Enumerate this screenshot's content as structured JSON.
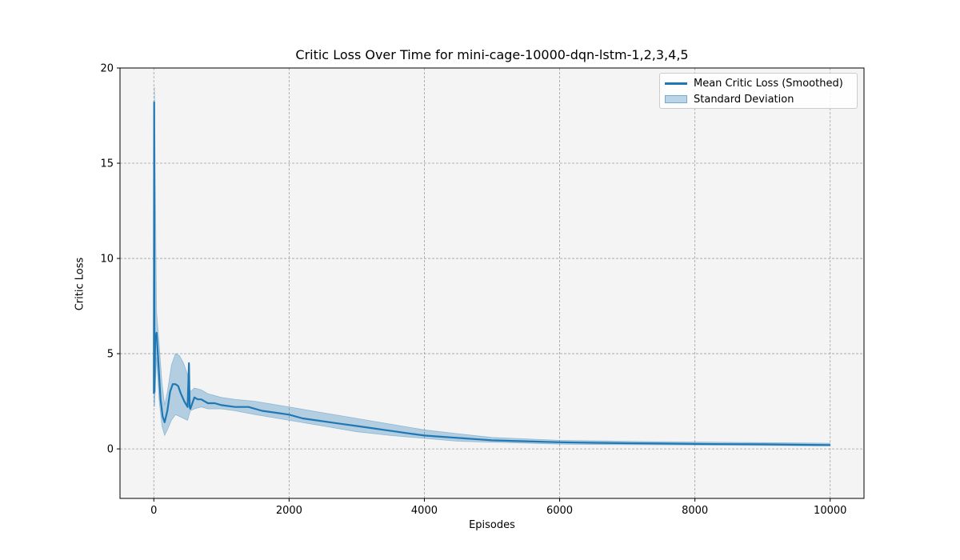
{
  "chart_data": {
    "type": "line",
    "title": "Critic Loss Over Time for mini-cage-10000-dqn-lstm-1,2,3,4,5",
    "xlabel": "Episodes",
    "ylabel": "Critic Loss",
    "xlim": [
      -500,
      10500
    ],
    "ylim": [
      -2.6,
      20
    ],
    "xticks": [
      0,
      2000,
      4000,
      6000,
      8000,
      10000
    ],
    "xtick_labels": [
      "0",
      "2000",
      "4000",
      "6000",
      "8000",
      "10000"
    ],
    "yticks": [
      0,
      5,
      10,
      15,
      20
    ],
    "ytick_labels": [
      "0",
      "5",
      "10",
      "15",
      "20"
    ],
    "grid": true,
    "legend_position": "top-right",
    "colors": {
      "line": "#1f77b4",
      "band": "#1f77b4",
      "plot_bg": "#f4f4f4"
    },
    "series": [
      {
        "name": "Mean Critic Loss (Smoothed)",
        "x": [
          0,
          5,
          10,
          20,
          40,
          60,
          80,
          100,
          130,
          160,
          200,
          240,
          280,
          320,
          360,
          400,
          450,
          500,
          520,
          530,
          540,
          560,
          600,
          650,
          700,
          800,
          900,
          1000,
          1200,
          1400,
          1600,
          1800,
          2000,
          2200,
          2400,
          2600,
          2800,
          3000,
          3200,
          3400,
          3600,
          3800,
          4000,
          4200,
          4400,
          4600,
          4800,
          5000,
          5500,
          6000,
          6500,
          7000,
          7500,
          8000,
          8500,
          9000,
          9500,
          10000
        ],
        "y": [
          2.9,
          18.2,
          3.0,
          5.8,
          6.1,
          5.0,
          3.8,
          2.6,
          1.7,
          1.4,
          2.0,
          3.0,
          3.4,
          3.4,
          3.3,
          2.9,
          2.5,
          2.2,
          4.5,
          2.2,
          2.1,
          2.3,
          2.7,
          2.6,
          2.6,
          2.4,
          2.4,
          2.3,
          2.2,
          2.2,
          2.0,
          1.9,
          1.8,
          1.6,
          1.5,
          1.4,
          1.3,
          1.2,
          1.1,
          1.0,
          0.9,
          0.8,
          0.7,
          0.65,
          0.6,
          0.55,
          0.5,
          0.45,
          0.4,
          0.35,
          0.32,
          0.3,
          0.28,
          0.26,
          0.25,
          0.24,
          0.22,
          0.2
        ]
      },
      {
        "name": "Standard Deviation",
        "x": [
          0,
          10,
          40,
          80,
          120,
          160,
          200,
          260,
          320,
          380,
          440,
          500,
          540,
          600,
          700,
          800,
          1000,
          1200,
          1500,
          2000,
          2500,
          3000,
          3500,
          4000,
          4500,
          5000,
          6000,
          7000,
          8000,
          9000,
          10000
        ],
        "lower": [
          2.5,
          2.2,
          4.8,
          2.5,
          1.2,
          0.7,
          1.0,
          1.5,
          1.8,
          1.7,
          1.6,
          1.5,
          2.0,
          2.1,
          2.2,
          2.1,
          2.1,
          2.0,
          1.8,
          1.5,
          1.2,
          0.9,
          0.7,
          0.55,
          0.4,
          0.35,
          0.25,
          0.22,
          0.2,
          0.18,
          0.15
        ],
        "upper": [
          3.5,
          19.0,
          7.2,
          5.5,
          3.5,
          2.3,
          3.0,
          4.4,
          5.0,
          4.9,
          4.5,
          3.9,
          3.0,
          3.2,
          3.1,
          2.9,
          2.7,
          2.6,
          2.5,
          2.2,
          1.9,
          1.6,
          1.3,
          1.0,
          0.8,
          0.6,
          0.45,
          0.4,
          0.36,
          0.33,
          0.3
        ]
      }
    ],
    "legend": [
      "Mean Critic Loss (Smoothed)",
      "Standard Deviation"
    ]
  }
}
